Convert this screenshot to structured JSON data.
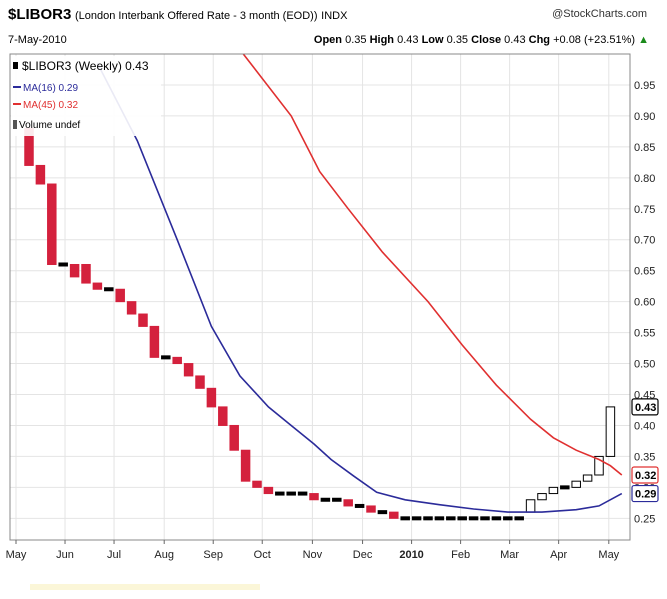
{
  "header": {
    "symbol": "$LIBOR3",
    "description": "(London Interbank Offered Rate - 3 month (EOD))",
    "exchange": "INDX",
    "brand": "@StockCharts.com",
    "date": "7-May-2010",
    "open_label": "Open",
    "open": "0.35",
    "high_label": "High",
    "high": "0.43",
    "low_label": "Low",
    "low": "0.35",
    "close_label": "Close",
    "close": "0.43",
    "chg_label": "Chg",
    "chg": "+0.08 (+23.51%)",
    "chg_arrow": "▲"
  },
  "legend": {
    "main": "$LIBOR3 (Weekly) 0.43",
    "ma16": "MA(16) 0.29",
    "ma45": "MA(45) 0.32",
    "volume": "Volume undef"
  },
  "colors": {
    "up": "#ffffff",
    "down": "#d4213d",
    "unchanged": "#000000",
    "ma16": "#2b2b9a",
    "ma45": "#e03030",
    "grid": "#e4e4e4"
  },
  "chart_data": {
    "type": "candlestick",
    "title": "$LIBOR3 (London Interbank Offered Rate - 3 month (EOD)) Weekly",
    "ylim": [
      0.215,
      1.0
    ],
    "y_ticks": [
      "0.95",
      "0.90",
      "0.85",
      "0.80",
      "0.75",
      "0.70",
      "0.65",
      "0.60",
      "0.55",
      "0.50",
      "0.45",
      "0.40",
      "0.35",
      "0.30",
      "0.25"
    ],
    "x_tick_labels": [
      "May",
      "Jun",
      "Jul",
      "Aug",
      "Sep",
      "Oct",
      "Nov",
      "Dec",
      "2010",
      "Feb",
      "Mar",
      "Apr",
      "May"
    ],
    "x_tick_weeks": [
      0,
      4.3,
      8.6,
      13,
      17.3,
      21.6,
      26,
      30.4,
      34.7,
      39,
      43.3,
      47.6,
      52
    ],
    "candles": [
      {
        "open": 0.88,
        "close": 0.82
      },
      {
        "open": 0.82,
        "close": 0.79
      },
      {
        "open": 0.79,
        "close": 0.66
      },
      {
        "open": 0.66,
        "close": 0.66
      },
      {
        "open": 0.66,
        "close": 0.64
      },
      {
        "open": 0.66,
        "close": 0.63
      },
      {
        "open": 0.63,
        "close": 0.62
      },
      {
        "open": 0.62,
        "close": 0.62
      },
      {
        "open": 0.62,
        "close": 0.6
      },
      {
        "open": 0.6,
        "close": 0.58
      },
      {
        "open": 0.58,
        "close": 0.56
      },
      {
        "open": 0.56,
        "close": 0.51
      },
      {
        "open": 0.51,
        "close": 0.51
      },
      {
        "open": 0.51,
        "close": 0.5
      },
      {
        "open": 0.5,
        "close": 0.48
      },
      {
        "open": 0.48,
        "close": 0.46
      },
      {
        "open": 0.46,
        "close": 0.43
      },
      {
        "open": 0.43,
        "close": 0.4
      },
      {
        "open": 0.4,
        "close": 0.36
      },
      {
        "open": 0.36,
        "close": 0.31
      },
      {
        "open": 0.31,
        "close": 0.3
      },
      {
        "open": 0.3,
        "close": 0.29
      },
      {
        "open": 0.29,
        "close": 0.29
      },
      {
        "open": 0.29,
        "close": 0.29
      },
      {
        "open": 0.29,
        "close": 0.29
      },
      {
        "open": 0.29,
        "close": 0.28
      },
      {
        "open": 0.28,
        "close": 0.28
      },
      {
        "open": 0.28,
        "close": 0.28
      },
      {
        "open": 0.28,
        "close": 0.27
      },
      {
        "open": 0.27,
        "close": 0.27
      },
      {
        "open": 0.27,
        "close": 0.26
      },
      {
        "open": 0.26,
        "close": 0.26
      },
      {
        "open": 0.26,
        "close": 0.25
      },
      {
        "open": 0.25,
        "close": 0.25
      },
      {
        "open": 0.25,
        "close": 0.25
      },
      {
        "open": 0.25,
        "close": 0.25
      },
      {
        "open": 0.25,
        "close": 0.25
      },
      {
        "open": 0.25,
        "close": 0.25
      },
      {
        "open": 0.25,
        "close": 0.25
      },
      {
        "open": 0.25,
        "close": 0.25
      },
      {
        "open": 0.25,
        "close": 0.25
      },
      {
        "open": 0.25,
        "close": 0.25
      },
      {
        "open": 0.25,
        "close": 0.25
      },
      {
        "open": 0.25,
        "close": 0.25
      },
      {
        "open": 0.26,
        "close": 0.28
      },
      {
        "open": 0.28,
        "close": 0.29
      },
      {
        "open": 0.29,
        "close": 0.3
      },
      {
        "open": 0.3,
        "close": 0.3
      },
      {
        "open": 0.3,
        "close": 0.31
      },
      {
        "open": 0.31,
        "close": 0.32
      },
      {
        "open": 0.32,
        "close": 0.35
      },
      {
        "open": 0.35,
        "close": 0.43
      }
    ],
    "series": [
      {
        "name": "MA(16)",
        "points": [
          [
            6,
            0.985
          ],
          [
            9.5,
            0.86
          ],
          [
            13,
            0.7
          ],
          [
            16,
            0.56
          ],
          [
            18.5,
            0.48
          ],
          [
            21,
            0.43
          ],
          [
            23,
            0.4
          ],
          [
            25,
            0.37
          ],
          [
            26.5,
            0.345
          ],
          [
            28.5,
            0.318
          ],
          [
            30.5,
            0.292
          ],
          [
            33,
            0.28
          ],
          [
            36,
            0.272
          ],
          [
            39,
            0.265
          ],
          [
            42,
            0.26
          ],
          [
            45,
            0.26
          ],
          [
            48,
            0.264
          ],
          [
            50,
            0.27
          ],
          [
            52,
            0.29
          ]
        ]
      },
      {
        "name": "MA(45)",
        "points": [
          [
            18.8,
            1.0
          ],
          [
            23,
            0.9
          ],
          [
            25.5,
            0.81
          ],
          [
            28,
            0.75
          ],
          [
            31,
            0.68
          ],
          [
            35,
            0.6
          ],
          [
            38,
            0.53
          ],
          [
            41,
            0.465
          ],
          [
            44,
            0.41
          ],
          [
            46,
            0.38
          ],
          [
            48,
            0.36
          ],
          [
            50,
            0.345
          ],
          [
            51,
            0.335
          ],
          [
            52,
            0.32
          ]
        ]
      }
    ],
    "value_tags": [
      {
        "name": "last",
        "value": 0.43,
        "label": "0.43"
      },
      {
        "name": "ma45",
        "value": 0.32,
        "label": "0.32"
      },
      {
        "name": "ma16",
        "value": 0.29,
        "label": "0.29"
      }
    ]
  }
}
